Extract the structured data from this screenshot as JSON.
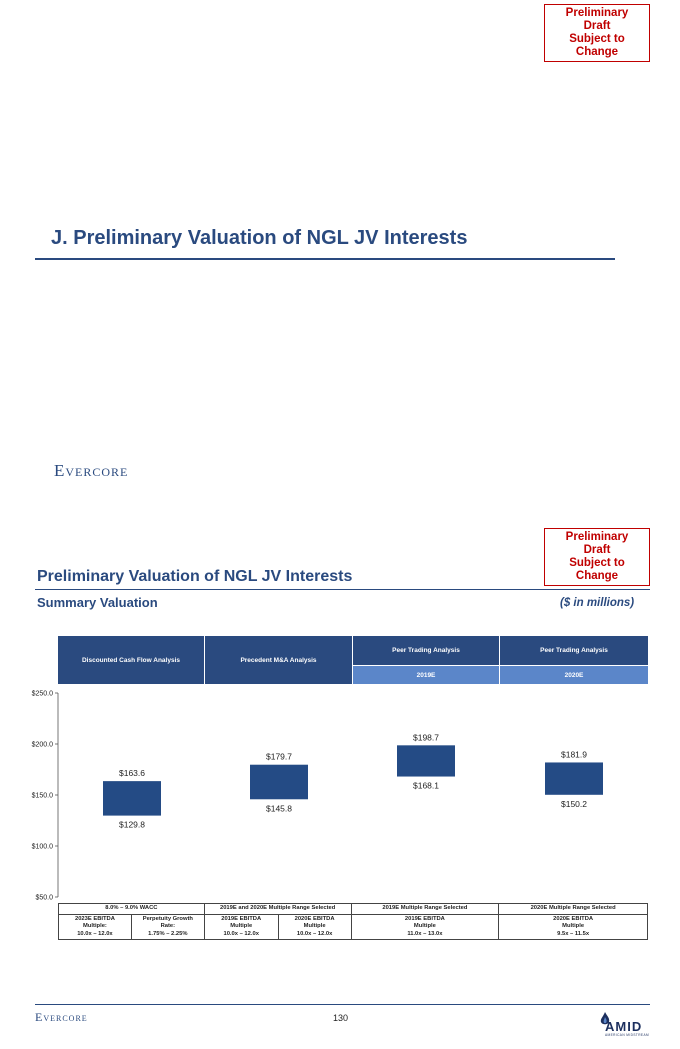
{
  "page1": {
    "draft_badge": [
      "Preliminary Draft",
      "Subject to Change"
    ],
    "section_title": "J.   Preliminary Valuation of NGL JV Interests",
    "logo": "Evercore"
  },
  "page2": {
    "draft_badge": [
      "Preliminary Draft",
      "Subject to Change"
    ],
    "title": "Preliminary Valuation of NGL JV Interests",
    "subtitle": "Summary Valuation",
    "units": "($ in millions)",
    "headers": [
      {
        "label": "Discounted Cash Flow Analysis",
        "sub": ""
      },
      {
        "label": "Precedent M&A Analysis",
        "sub": ""
      },
      {
        "label": "Peer Trading Analysis",
        "sub": "2019E"
      },
      {
        "label": "Peer Trading Analysis",
        "sub": "2020E"
      }
    ],
    "footer": {
      "row1": [
        "8.0% – 9.0% WACC",
        "2019E and 2020E Multiple Range Selected",
        "2019E Multiple Range Selected",
        "2020E Multiple Range Selected"
      ],
      "row2": [
        [
          "2023E EBITDA",
          "Multiple:",
          "10.0x – 12.0x"
        ],
        [
          "Perpetuity Growth",
          "Rate:",
          "1.75% – 2.25%"
        ],
        [
          "2019E EBITDA",
          "Multiple",
          "10.0x – 12.0x"
        ],
        [
          "2020E EBITDA",
          "Multiple",
          "10.0x – 12.0x"
        ],
        [
          "2019E EBITDA",
          "Multiple",
          "11.0x – 13.0x"
        ],
        [
          "2020E EBITDA",
          "Multiple",
          "9.5x – 11.5x"
        ]
      ]
    },
    "page_number": "130",
    "logo_left": "Evercore",
    "logo_right": "AMID",
    "logo_right_sub": "AMERICAN MIDSTREAM"
  },
  "colors": {
    "navy": "#2a4a7f",
    "bar": "#244b85",
    "light_blue": "#5b86c9",
    "red": "#c00000"
  },
  "chart_data": {
    "type": "bar",
    "subtype": "floating-range",
    "title": "Summary Valuation",
    "ylabel": "($ in millions)",
    "ylim": [
      50,
      250
    ],
    "yticks": [
      "$250.0",
      "$200.0",
      "$150.0",
      "$100.0",
      "$50.0"
    ],
    "ytick_values": [
      250,
      200,
      150,
      100,
      50
    ],
    "categories": [
      "Discounted Cash Flow Analysis",
      "Precedent M&A Analysis",
      "Peer Trading Analysis 2019E",
      "Peer Trading Analysis 2020E"
    ],
    "series": [
      {
        "name": "low",
        "values": [
          129.8,
          145.8,
          168.1,
          150.2
        ]
      },
      {
        "name": "high",
        "values": [
          163.6,
          179.7,
          198.7,
          181.9
        ]
      }
    ],
    "low_labels": [
      "$129.8",
      "$145.8",
      "$168.1",
      "$150.2"
    ],
    "high_labels": [
      "$163.6",
      "$179.7",
      "$198.7",
      "$181.9"
    ]
  }
}
